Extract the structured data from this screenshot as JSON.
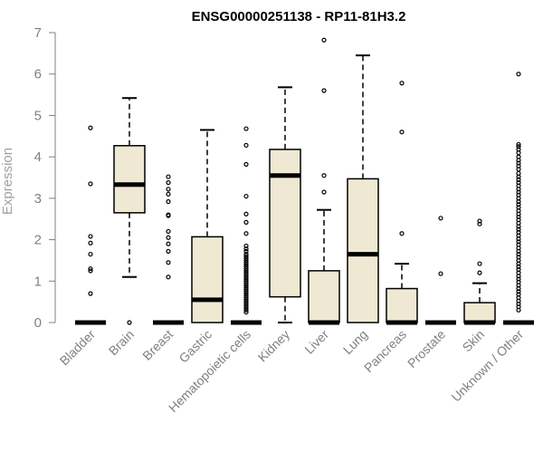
{
  "chart_data": {
    "type": "boxplot",
    "title": "ENSG00000251138 - RP11-81H3.2",
    "xlabel": "",
    "ylabel": "Expression",
    "ylim": [
      0,
      7
    ],
    "yticks": [
      0,
      1,
      2,
      3,
      4,
      5,
      6,
      7
    ],
    "box_color": "#efe8d2",
    "categories": [
      "Bladder",
      "Brain",
      "Breast",
      "Gastric",
      "Hematopoietic cells",
      "Kidney",
      "Liver",
      "Lung",
      "Pancreas",
      "Prostate",
      "Skin",
      "Unknown / Other"
    ],
    "series": [
      {
        "name": "Bladder",
        "q1": 0,
        "median": 0,
        "q3": 0,
        "whisker_low": 0,
        "whisker_high": 0,
        "outliers": [
          4.7,
          3.35,
          2.08,
          1.92,
          1.65,
          1.3,
          1.25,
          0.7
        ]
      },
      {
        "name": "Brain",
        "q1": 2.65,
        "median": 3.33,
        "q3": 4.27,
        "whisker_low": 1.1,
        "whisker_high": 5.42,
        "outliers": [
          0
        ]
      },
      {
        "name": "Breast",
        "q1": 0,
        "median": 0,
        "q3": 0,
        "whisker_low": 0,
        "whisker_high": 0,
        "outliers": [
          3.52,
          3.38,
          3.22,
          3.1,
          2.92,
          2.6,
          2.58,
          2.2,
          2.05,
          1.9,
          1.72,
          1.45,
          1.1
        ]
      },
      {
        "name": "Gastric",
        "q1": 0,
        "median": 0.55,
        "q3": 2.07,
        "whisker_low": 0,
        "whisker_high": 4.65,
        "outliers": []
      },
      {
        "name": "Hematopoietic cells",
        "q1": 0,
        "median": 0,
        "q3": 0,
        "whisker_low": 0,
        "whisker_high": 0,
        "outliers": [
          4.68,
          4.28,
          3.82,
          3.05,
          2.62,
          2.42,
          2.15,
          1.85,
          1.78,
          1.72,
          1.65,
          1.6,
          1.55,
          1.5,
          1.45,
          1.4,
          1.35,
          1.3,
          1.25,
          1.2,
          1.15,
          1.1,
          1.05,
          1.0,
          0.95,
          0.9,
          0.85,
          0.8,
          0.75,
          0.7,
          0.65,
          0.6,
          0.55,
          0.5,
          0.45,
          0.4,
          0.35,
          0.3,
          0.25
        ]
      },
      {
        "name": "Kidney",
        "q1": 0.62,
        "median": 3.55,
        "q3": 4.18,
        "whisker_low": 0,
        "whisker_high": 5.68,
        "outliers": []
      },
      {
        "name": "Liver",
        "q1": 0,
        "median": 0,
        "q3": 1.25,
        "whisker_low": 0,
        "whisker_high": 2.72,
        "outliers": [
          6.82,
          5.6,
          3.55,
          3.15
        ]
      },
      {
        "name": "Lung",
        "q1": 0,
        "median": 1.65,
        "q3": 3.47,
        "whisker_low": 0,
        "whisker_high": 6.45,
        "outliers": []
      },
      {
        "name": "Pancreas",
        "q1": 0,
        "median": 0,
        "q3": 0.82,
        "whisker_low": 0,
        "whisker_high": 1.42,
        "outliers": [
          5.78,
          4.6,
          2.15
        ]
      },
      {
        "name": "Prostate",
        "q1": 0,
        "median": 0,
        "q3": 0,
        "whisker_low": 0,
        "whisker_high": 0,
        "outliers": [
          2.52,
          1.18
        ]
      },
      {
        "name": "Skin",
        "q1": 0,
        "median": 0,
        "q3": 0.48,
        "whisker_low": 0,
        "whisker_high": 0.95,
        "outliers": [
          2.45,
          2.38,
          1.42,
          1.2
        ]
      },
      {
        "name": "Unknown / Other",
        "q1": 0,
        "median": 0,
        "q3": 0,
        "whisker_low": 0,
        "whisker_high": 0,
        "outliers": [
          6.0,
          4.3,
          4.25,
          4.18,
          4.1,
          4.0,
          3.92,
          3.85,
          3.78,
          3.7,
          3.6,
          3.52,
          3.45,
          3.38,
          3.3,
          3.22,
          3.15,
          3.08,
          3.0,
          2.92,
          2.85,
          2.78,
          2.7,
          2.62,
          2.55,
          2.48,
          2.4,
          2.32,
          2.25,
          2.18,
          2.1,
          2.02,
          1.95,
          1.88,
          1.8,
          1.72,
          1.65,
          1.58,
          1.5,
          1.42,
          1.35,
          1.28,
          1.2,
          1.12,
          1.05,
          0.98,
          0.9,
          0.82,
          0.75,
          0.68,
          0.6,
          0.52,
          0.45,
          0.38,
          0.3
        ]
      }
    ]
  }
}
